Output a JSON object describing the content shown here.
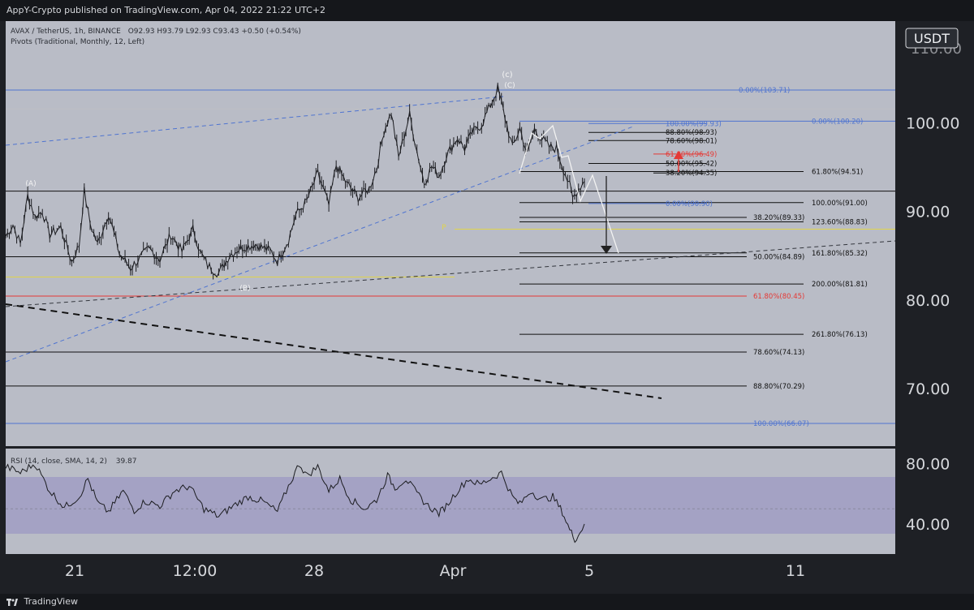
{
  "header": {
    "publisher_line": "AppY-Crypto published on TradingView.com, Apr 04, 2022 21:22 UTC+2"
  },
  "footer": {
    "brand": "TradingView"
  },
  "chart_data": {
    "type": "candlestick",
    "title": "AVAX / TetherUS, 1h, BINANCE",
    "ohlc_readout": "O92.93 H93.79 L92.93 C93.43 +0.50 (+0.54%)",
    "indicator_line": "Pivots (Traditional, Monthly, 12, Left)",
    "currency_label": "USDT",
    "price_range": [
      63.5,
      111.5
    ],
    "price_axis_ticks": [
      "100.00",
      "90.00",
      "80.00",
      "70.00"
    ],
    "price_axis_top_partial": "110.00",
    "time_axis_ticks": [
      "21",
      "12:00",
      "28",
      "Apr",
      "5",
      "11"
    ],
    "wave_labels": {
      "A": "(A)",
      "B": "(B)",
      "C_top": "(c)",
      "C": "(C)",
      "pivot": "P"
    },
    "price_path": [
      [
        0,
        87.2
      ],
      [
        0.01,
        88.5
      ],
      [
        0.02,
        86.3
      ],
      [
        0.03,
        91.8
      ],
      [
        0.04,
        89.4
      ],
      [
        0.05,
        90.0
      ],
      [
        0.06,
        87.4
      ],
      [
        0.075,
        88.2
      ],
      [
        0.09,
        84.3
      ],
      [
        0.1,
        86.2
      ],
      [
        0.107,
        92.3
      ],
      [
        0.115,
        88.6
      ],
      [
        0.125,
        86.3
      ],
      [
        0.14,
        89.8
      ],
      [
        0.155,
        85.2
      ],
      [
        0.17,
        83.6
      ],
      [
        0.18,
        84.5
      ],
      [
        0.195,
        85.8
      ],
      [
        0.21,
        84.6
      ],
      [
        0.225,
        87.4
      ],
      [
        0.24,
        85.5
      ],
      [
        0.255,
        88.0
      ],
      [
        0.265,
        85.4
      ],
      [
        0.275,
        83.9
      ],
      [
        0.29,
        83.0
      ],
      [
        0.305,
        85.1
      ],
      [
        0.32,
        85.9
      ],
      [
        0.34,
        86.3
      ],
      [
        0.36,
        85.6
      ],
      [
        0.37,
        84.4
      ],
      [
        0.385,
        86.8
      ],
      [
        0.395,
        89.6
      ],
      [
        0.41,
        91.2
      ],
      [
        0.425,
        94.3
      ],
      [
        0.44,
        90.7
      ],
      [
        0.45,
        95.2
      ],
      [
        0.465,
        93.1
      ],
      [
        0.48,
        91.6
      ],
      [
        0.495,
        92.6
      ],
      [
        0.505,
        94.8
      ],
      [
        0.515,
        99.1
      ],
      [
        0.525,
        101.2
      ],
      [
        0.535,
        96.1
      ],
      [
        0.55,
        100.9
      ],
      [
        0.56,
        96.8
      ],
      [
        0.57,
        93.2
      ],
      [
        0.58,
        95.1
      ],
      [
        0.59,
        94.0
      ],
      [
        0.6,
        96.3
      ],
      [
        0.615,
        98.3
      ],
      [
        0.625,
        97.1
      ],
      [
        0.635,
        98.9
      ],
      [
        0.648,
        99.8
      ],
      [
        0.66,
        102.0
      ],
      [
        0.67,
        103.9
      ],
      [
        0.68,
        100.6
      ],
      [
        0.69,
        97.2
      ],
      [
        0.7,
        99.4
      ],
      [
        0.71,
        96.5
      ],
      [
        0.72,
        99.3
      ],
      [
        0.73,
        98.2
      ],
      [
        0.74,
        97.3
      ],
      [
        0.75,
        97.1
      ],
      [
        0.757,
        95.4
      ],
      [
        0.762,
        94.2
      ],
      [
        0.768,
        92.9
      ],
      [
        0.772,
        91.5
      ],
      [
        0.78,
        92.6
      ],
      [
        0.788,
        93.4
      ]
    ],
    "rsi": {
      "label": "RSI (14, close, SMA, 14, 2)",
      "value": "39.87",
      "axis_ticks": [
        "80.00",
        "40.00"
      ],
      "range": [
        20,
        90
      ],
      "band": [
        30,
        70
      ],
      "path": [
        [
          0,
          78
        ],
        [
          0.02,
          74
        ],
        [
          0.04,
          80
        ],
        [
          0.06,
          62
        ],
        [
          0.08,
          51
        ],
        [
          0.1,
          58
        ],
        [
          0.112,
          70
        ],
        [
          0.125,
          54
        ],
        [
          0.14,
          48
        ],
        [
          0.16,
          62
        ],
        [
          0.175,
          49
        ],
        [
          0.19,
          55
        ],
        [
          0.21,
          52
        ],
        [
          0.23,
          62
        ],
        [
          0.25,
          65
        ],
        [
          0.27,
          50
        ],
        [
          0.29,
          45
        ],
        [
          0.31,
          52
        ],
        [
          0.33,
          58
        ],
        [
          0.35,
          55
        ],
        [
          0.37,
          48
        ],
        [
          0.385,
          65
        ],
        [
          0.4,
          80
        ],
        [
          0.41,
          72
        ],
        [
          0.425,
          78
        ],
        [
          0.44,
          62
        ],
        [
          0.455,
          70
        ],
        [
          0.47,
          56
        ],
        [
          0.49,
          50
        ],
        [
          0.505,
          56
        ],
        [
          0.52,
          72
        ],
        [
          0.53,
          64
        ],
        [
          0.545,
          70
        ],
        [
          0.56,
          60
        ],
        [
          0.575,
          52
        ],
        [
          0.59,
          47
        ],
        [
          0.6,
          52
        ],
        [
          0.615,
          62
        ],
        [
          0.63,
          70
        ],
        [
          0.645,
          66
        ],
        [
          0.66,
          70
        ],
        [
          0.675,
          74
        ],
        [
          0.69,
          58
        ],
        [
          0.7,
          53
        ],
        [
          0.715,
          62
        ],
        [
          0.73,
          56
        ],
        [
          0.745,
          58
        ],
        [
          0.758,
          48
        ],
        [
          0.768,
          36
        ],
        [
          0.775,
          30
        ],
        [
          0.782,
          34
        ],
        [
          0.788,
          40
        ]
      ]
    },
    "horizontal_levels": [
      {
        "price": 103.71,
        "label": "0.00%(103.71)",
        "color": "#4f74d0"
      },
      {
        "price": 101.6,
        "label": "",
        "color": "#bfbfc4"
      },
      {
        "price": 100.2,
        "label": "0.00%(100.20)",
        "color": "#4f74d0"
      },
      {
        "price": 99.93,
        "label": "100.00%(99.93)",
        "color": "#4f74d0"
      },
      {
        "price": 98.93,
        "label": "88.80%(98.93)",
        "color": "#111111"
      },
      {
        "price": 98.01,
        "label": "78.60%(98.01)",
        "color": "#111111"
      },
      {
        "price": 96.49,
        "label": "61.80%(96.49)",
        "color": "#e53935"
      },
      {
        "price": 95.42,
        "label": "50.00%(95.42)",
        "color": "#111111"
      },
      {
        "price": 94.51,
        "label": "61.80%(94.51)",
        "color": "#111111"
      },
      {
        "price": 94.35,
        "label": "38.20%(94.35)",
        "color": "#111111"
      },
      {
        "price": 92.3,
        "label": "",
        "color": "#111111"
      },
      {
        "price": 91.0,
        "label": "100.00%(91.00)",
        "color": "#111111"
      },
      {
        "price": 90.9,
        "label": "0.00%(90.90)",
        "color": "#4f74d0"
      },
      {
        "price": 89.33,
        "label": "38.20%(89.33)",
        "color": "#111111"
      },
      {
        "price": 88.83,
        "label": "123.60%(88.83)",
        "color": "#111111"
      },
      {
        "price": 88.0,
        "label": "",
        "color": "#e0d44a"
      },
      {
        "price": 85.32,
        "label": "161.80%(85.32)",
        "color": "#111111"
      },
      {
        "price": 84.89,
        "label": "50.00%(84.89)",
        "color": "#111111"
      },
      {
        "price": 82.6,
        "label": "",
        "color": "#e0d44a"
      },
      {
        "price": 81.81,
        "label": "200.00%(81.81)",
        "color": "#111111"
      },
      {
        "price": 80.45,
        "label": "61.80%(80.45)",
        "color": "#e53935"
      },
      {
        "price": 76.13,
        "label": "261.80%(76.13)",
        "color": "#111111"
      },
      {
        "price": 74.13,
        "label": "78.60%(74.13)",
        "color": "#111111"
      },
      {
        "price": 70.29,
        "label": "88.80%(70.29)",
        "color": "#111111"
      },
      {
        "price": 66.07,
        "label": "100.00%(66.07)",
        "color": "#4f74d0"
      }
    ]
  }
}
